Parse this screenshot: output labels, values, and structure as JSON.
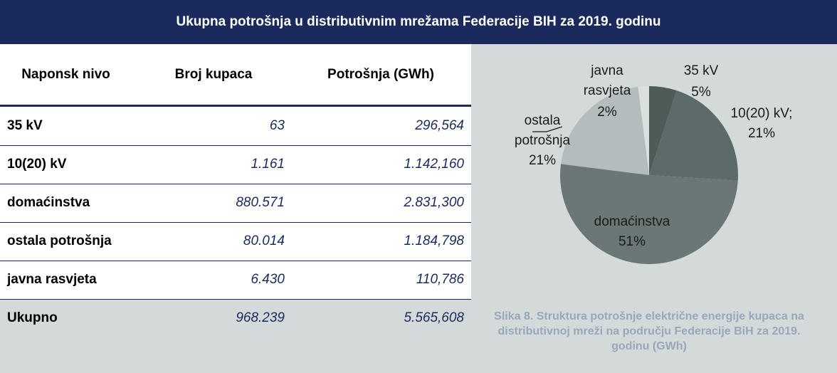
{
  "header": {
    "title": "Ukupna potrošnja u distributivnim mrežama Federacije BIH za 2019. godinu"
  },
  "table": {
    "columns": [
      "Naponsk nivo",
      "Broj kupaca",
      "Potrošnja (GWh)"
    ],
    "rows": [
      [
        "35 kV",
        "63",
        "296,564"
      ],
      [
        "10(20) kV",
        "1.161",
        "1.142,160"
      ],
      [
        "domaćinstva",
        "880.571",
        "2.831,300"
      ],
      [
        "ostala potrošnja",
        "80.014",
        "1.184,798"
      ],
      [
        "javna rasvjeta",
        "6.430",
        "110,786"
      ],
      [
        "Ukupno",
        "968.239",
        "5.565,608"
      ]
    ]
  },
  "chart_data": {
    "type": "pie",
    "categories": [
      "35 kV",
      "10(20) kV;",
      "domaćinstva",
      "ostala potrošnja",
      "javna rasvjeta"
    ],
    "values": [
      5,
      21,
      51,
      21,
      2
    ],
    "value_labels": [
      "5%",
      "21%",
      "51%",
      "21%",
      "2%"
    ],
    "colors": [
      "#4e5b59",
      "#5d6a6a",
      "#6b7777",
      "#b4bdbd",
      "#dadfdf"
    ]
  },
  "caption": "Slika 8. Struktura potrošnje električne energije kupaca na distributivnoj mreži na području Federacije BiH za 2019. godinu (GWh)"
}
